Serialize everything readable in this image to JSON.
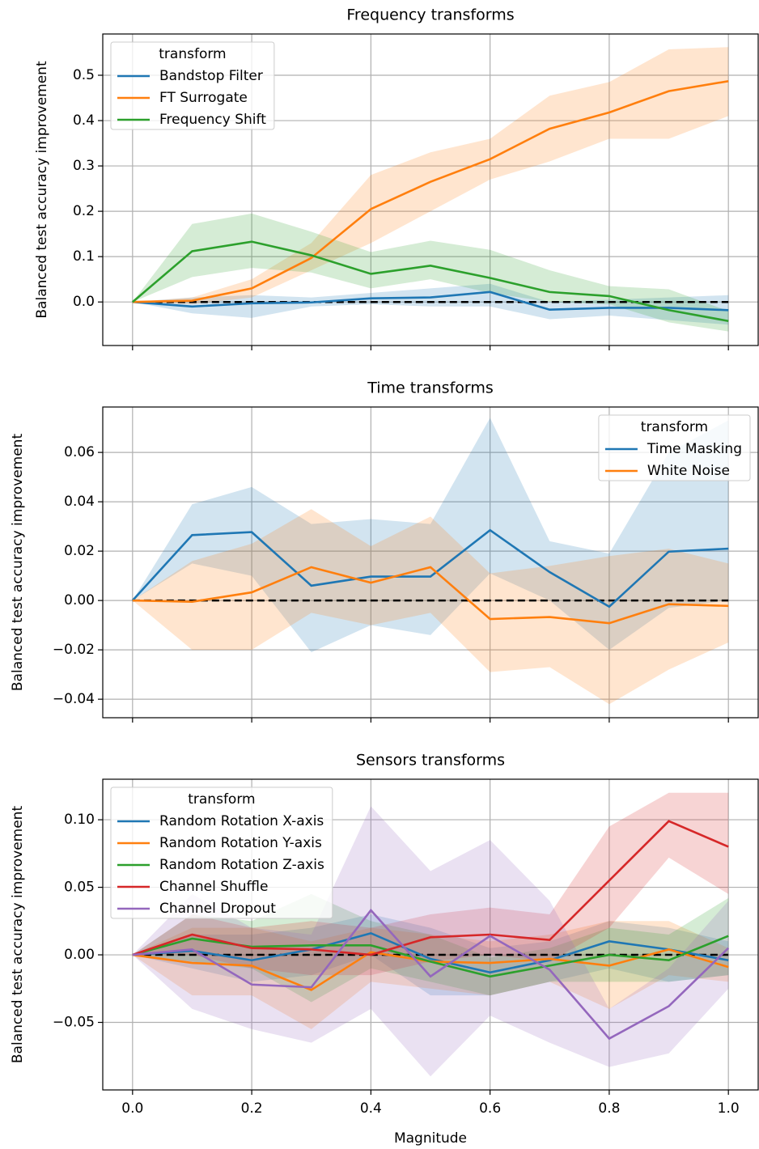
{
  "chart_data": [
    {
      "type": "line",
      "title": "Frequency transforms",
      "ylabel": "Balanced test accuracy improvement",
      "x": [
        0,
        0.1,
        0.2,
        0.3,
        0.4,
        0.5,
        0.6,
        0.7,
        0.8,
        0.9,
        1.0
      ],
      "xlim": [
        -0.05,
        1.05
      ],
      "xticks": [
        0,
        0.2,
        0.4,
        0.6,
        0.8,
        1.0
      ],
      "show_xtick_labels": false,
      "ylim": [
        -0.096,
        0.591
      ],
      "yticks": [
        {
          "value": 0,
          "label": "0.0"
        },
        0.1,
        0.2,
        0.3,
        0.4,
        0.5
      ],
      "grid": true,
      "baseline": 0,
      "legend_title": "transform",
      "legend": "upper left",
      "series": [
        {
          "name": "Bandstop Filter",
          "color": "#1f77b4",
          "values": [
            0,
            -0.01,
            -0.003,
            -0.001,
            0.008,
            0.01,
            0.022,
            -0.017,
            -0.013,
            -0.013,
            -0.018
          ],
          "lower": [
            0,
            -0.025,
            -0.035,
            -0.01,
            -0.005,
            -0.01,
            -0.01,
            -0.038,
            -0.03,
            -0.04,
            -0.05
          ],
          "upper": [
            0,
            0.01,
            0.015,
            0.01,
            0.02,
            0.03,
            0.04,
            0.0,
            0.005,
            0.01,
            0.015
          ]
        },
        {
          "name": "FT Surrogate",
          "color": "#ff7f0e",
          "values": [
            0,
            0.003,
            0.03,
            0.097,
            0.205,
            0.265,
            0.315,
            0.382,
            0.418,
            0.465,
            0.487
          ],
          "lower": [
            0,
            -0.005,
            0.01,
            0.07,
            0.13,
            0.2,
            0.27,
            0.31,
            0.36,
            0.36,
            0.41
          ],
          "upper": [
            0,
            0.01,
            0.05,
            0.13,
            0.28,
            0.33,
            0.36,
            0.455,
            0.485,
            0.557,
            0.562
          ]
        },
        {
          "name": "Frequency Shift",
          "color": "#2ca02c",
          "values": [
            0,
            0.112,
            0.133,
            0.103,
            0.062,
            0.08,
            0.053,
            0.022,
            0.013,
            -0.018,
            -0.042
          ],
          "lower": [
            0,
            0.055,
            0.075,
            0.065,
            0.03,
            0.05,
            0.02,
            0.0,
            -0.005,
            -0.045,
            -0.065
          ],
          "upper": [
            0,
            0.172,
            0.195,
            0.155,
            0.11,
            0.135,
            0.115,
            0.07,
            0.035,
            0.028,
            -0.02
          ]
        }
      ]
    },
    {
      "type": "line",
      "title": "Time transforms",
      "ylabel": "Balanced test accuracy improvement",
      "x": [
        0,
        0.1,
        0.2,
        0.3,
        0.4,
        0.5,
        0.6,
        0.7,
        0.8,
        0.9,
        1.0
      ],
      "xlim": [
        -0.05,
        1.05
      ],
      "xticks": [
        0,
        0.2,
        0.4,
        0.6,
        0.8,
        1.0
      ],
      "show_xtick_labels": false,
      "ylim": [
        -0.0475,
        0.0784
      ],
      "yticks": [
        {
          "value": -0.04,
          "label": "−0.04"
        },
        {
          "value": -0.02,
          "label": "−0.02"
        },
        {
          "value": 0,
          "label": "0.00"
        },
        {
          "value": 0.02,
          "label": "0.02"
        },
        {
          "value": 0.04,
          "label": "0.04"
        },
        {
          "value": 0.06,
          "label": "0.06"
        }
      ],
      "grid": true,
      "baseline": 0,
      "legend_title": "transform",
      "legend": "upper right",
      "series": [
        {
          "name": "Time Masking",
          "color": "#1f77b4",
          "values": [
            0,
            0.0265,
            0.0277,
            0.006,
            0.0097,
            0.0097,
            0.0285,
            0.0115,
            -0.0025,
            0.0198,
            0.021
          ],
          "lower": [
            0,
            0.015,
            0.01,
            -0.021,
            -0.01,
            -0.014,
            0.011,
            0.0,
            -0.02,
            -0.003,
            0.0
          ],
          "upper": [
            0,
            0.039,
            0.046,
            0.031,
            0.033,
            0.031,
            0.074,
            0.024,
            0.019,
            0.06,
            0.073
          ]
        },
        {
          "name": "White Noise",
          "color": "#ff7f0e",
          "values": [
            0,
            -0.0005,
            0.0033,
            0.0135,
            0.0072,
            0.0135,
            -0.0075,
            -0.0067,
            -0.0092,
            -0.0015,
            -0.0022
          ],
          "lower": [
            0,
            -0.02,
            -0.02,
            -0.005,
            -0.01,
            -0.005,
            -0.029,
            -0.027,
            -0.042,
            -0.028,
            -0.017
          ],
          "upper": [
            0,
            0.016,
            0.023,
            0.037,
            0.022,
            0.034,
            0.011,
            0.014,
            0.018,
            0.021,
            0.015
          ]
        }
      ]
    },
    {
      "type": "line",
      "title": "Sensors transforms",
      "ylabel": "Balanced test accuracy improvement",
      "xlabel": "Magnitude",
      "x": [
        0,
        0.1,
        0.2,
        0.3,
        0.4,
        0.5,
        0.6,
        0.7,
        0.8,
        0.9,
        1.0
      ],
      "xlim": [
        -0.05,
        1.05
      ],
      "xticks": [
        {
          "value": 0,
          "label": "0.0"
        },
        0.2,
        0.4,
        0.6,
        0.8,
        {
          "value": 1.0,
          "label": "1.0"
        }
      ],
      "show_xtick_labels": true,
      "ylim": [
        -0.1,
        0.13
      ],
      "yticks": [
        {
          "value": -0.05,
          "label": "−0.05"
        },
        {
          "value": 0,
          "label": "0.00"
        },
        {
          "value": 0.05,
          "label": "0.05"
        },
        {
          "value": 0.1,
          "label": "0.10"
        }
      ],
      "grid": true,
      "baseline": 0,
      "legend_title": "transform",
      "legend": "upper left",
      "series": [
        {
          "name": "Random Rotation X-axis",
          "color": "#1f77b4",
          "values": [
            0,
            0.003,
            -0.004,
            0.004,
            0.016,
            -0.003,
            -0.013,
            -0.004,
            0.01,
            0.004,
            -0.004
          ],
          "lower": [
            0,
            -0.01,
            -0.02,
            -0.015,
            0.0,
            -0.03,
            -0.03,
            -0.02,
            -0.01,
            -0.02,
            -0.015
          ],
          "upper": [
            0,
            0.015,
            0.015,
            0.02,
            0.03,
            0.02,
            0.005,
            0.01,
            0.025,
            0.02,
            0.01
          ]
        },
        {
          "name": "Random Rotation Y-axis",
          "color": "#ff7f0e",
          "values": [
            0,
            -0.006,
            -0.008,
            -0.026,
            0.002,
            -0.005,
            -0.006,
            -0.003,
            -0.008,
            0.004,
            -0.009
          ],
          "lower": [
            0,
            -0.03,
            -0.03,
            -0.055,
            -0.02,
            -0.025,
            -0.03,
            -0.02,
            -0.04,
            -0.015,
            -0.02
          ],
          "upper": [
            0,
            0.02,
            0.02,
            0.01,
            0.02,
            0.015,
            0.01,
            0.015,
            0.025,
            0.025,
            0.005
          ]
        },
        {
          "name": "Random Rotation Z-axis",
          "color": "#2ca02c",
          "values": [
            0,
            0.012,
            0.006,
            0.007,
            0.007,
            -0.005,
            -0.016,
            -0.008,
            0.0,
            -0.004,
            0.014
          ],
          "lower": [
            0,
            -0.005,
            -0.01,
            -0.035,
            -0.01,
            -0.02,
            -0.03,
            -0.02,
            -0.02,
            -0.02,
            -0.015
          ],
          "upper": [
            0,
            0.03,
            0.025,
            0.045,
            0.025,
            0.015,
            -0.002,
            0.005,
            0.02,
            0.015,
            0.042
          ]
        },
        {
          "name": "Channel Shuffle",
          "color": "#d62728",
          "values": [
            0,
            0.015,
            0.005,
            0.004,
            0.0,
            0.013,
            0.015,
            0.011,
            0.055,
            0.099,
            0.08
          ],
          "lower": [
            0,
            0.0,
            -0.01,
            -0.015,
            -0.015,
            -0.005,
            0.0,
            -0.005,
            0.02,
            0.072,
            0.045
          ],
          "upper": [
            0,
            0.03,
            0.02,
            0.025,
            0.02,
            0.03,
            0.035,
            0.03,
            0.095,
            0.12,
            0.12
          ]
        },
        {
          "name": "Channel Dropout",
          "color": "#9467bd",
          "values": [
            0,
            0.004,
            -0.022,
            -0.024,
            0.033,
            -0.016,
            0.014,
            -0.011,
            -0.062,
            -0.038,
            0.005
          ],
          "lower": [
            0,
            -0.04,
            -0.055,
            -0.065,
            -0.04,
            -0.09,
            -0.045,
            -0.065,
            -0.083,
            -0.073,
            -0.025
          ],
          "upper": [
            0,
            0.045,
            0.02,
            0.015,
            0.11,
            0.062,
            0.085,
            0.04,
            -0.04,
            -0.01,
            0.04
          ]
        }
      ]
    }
  ]
}
